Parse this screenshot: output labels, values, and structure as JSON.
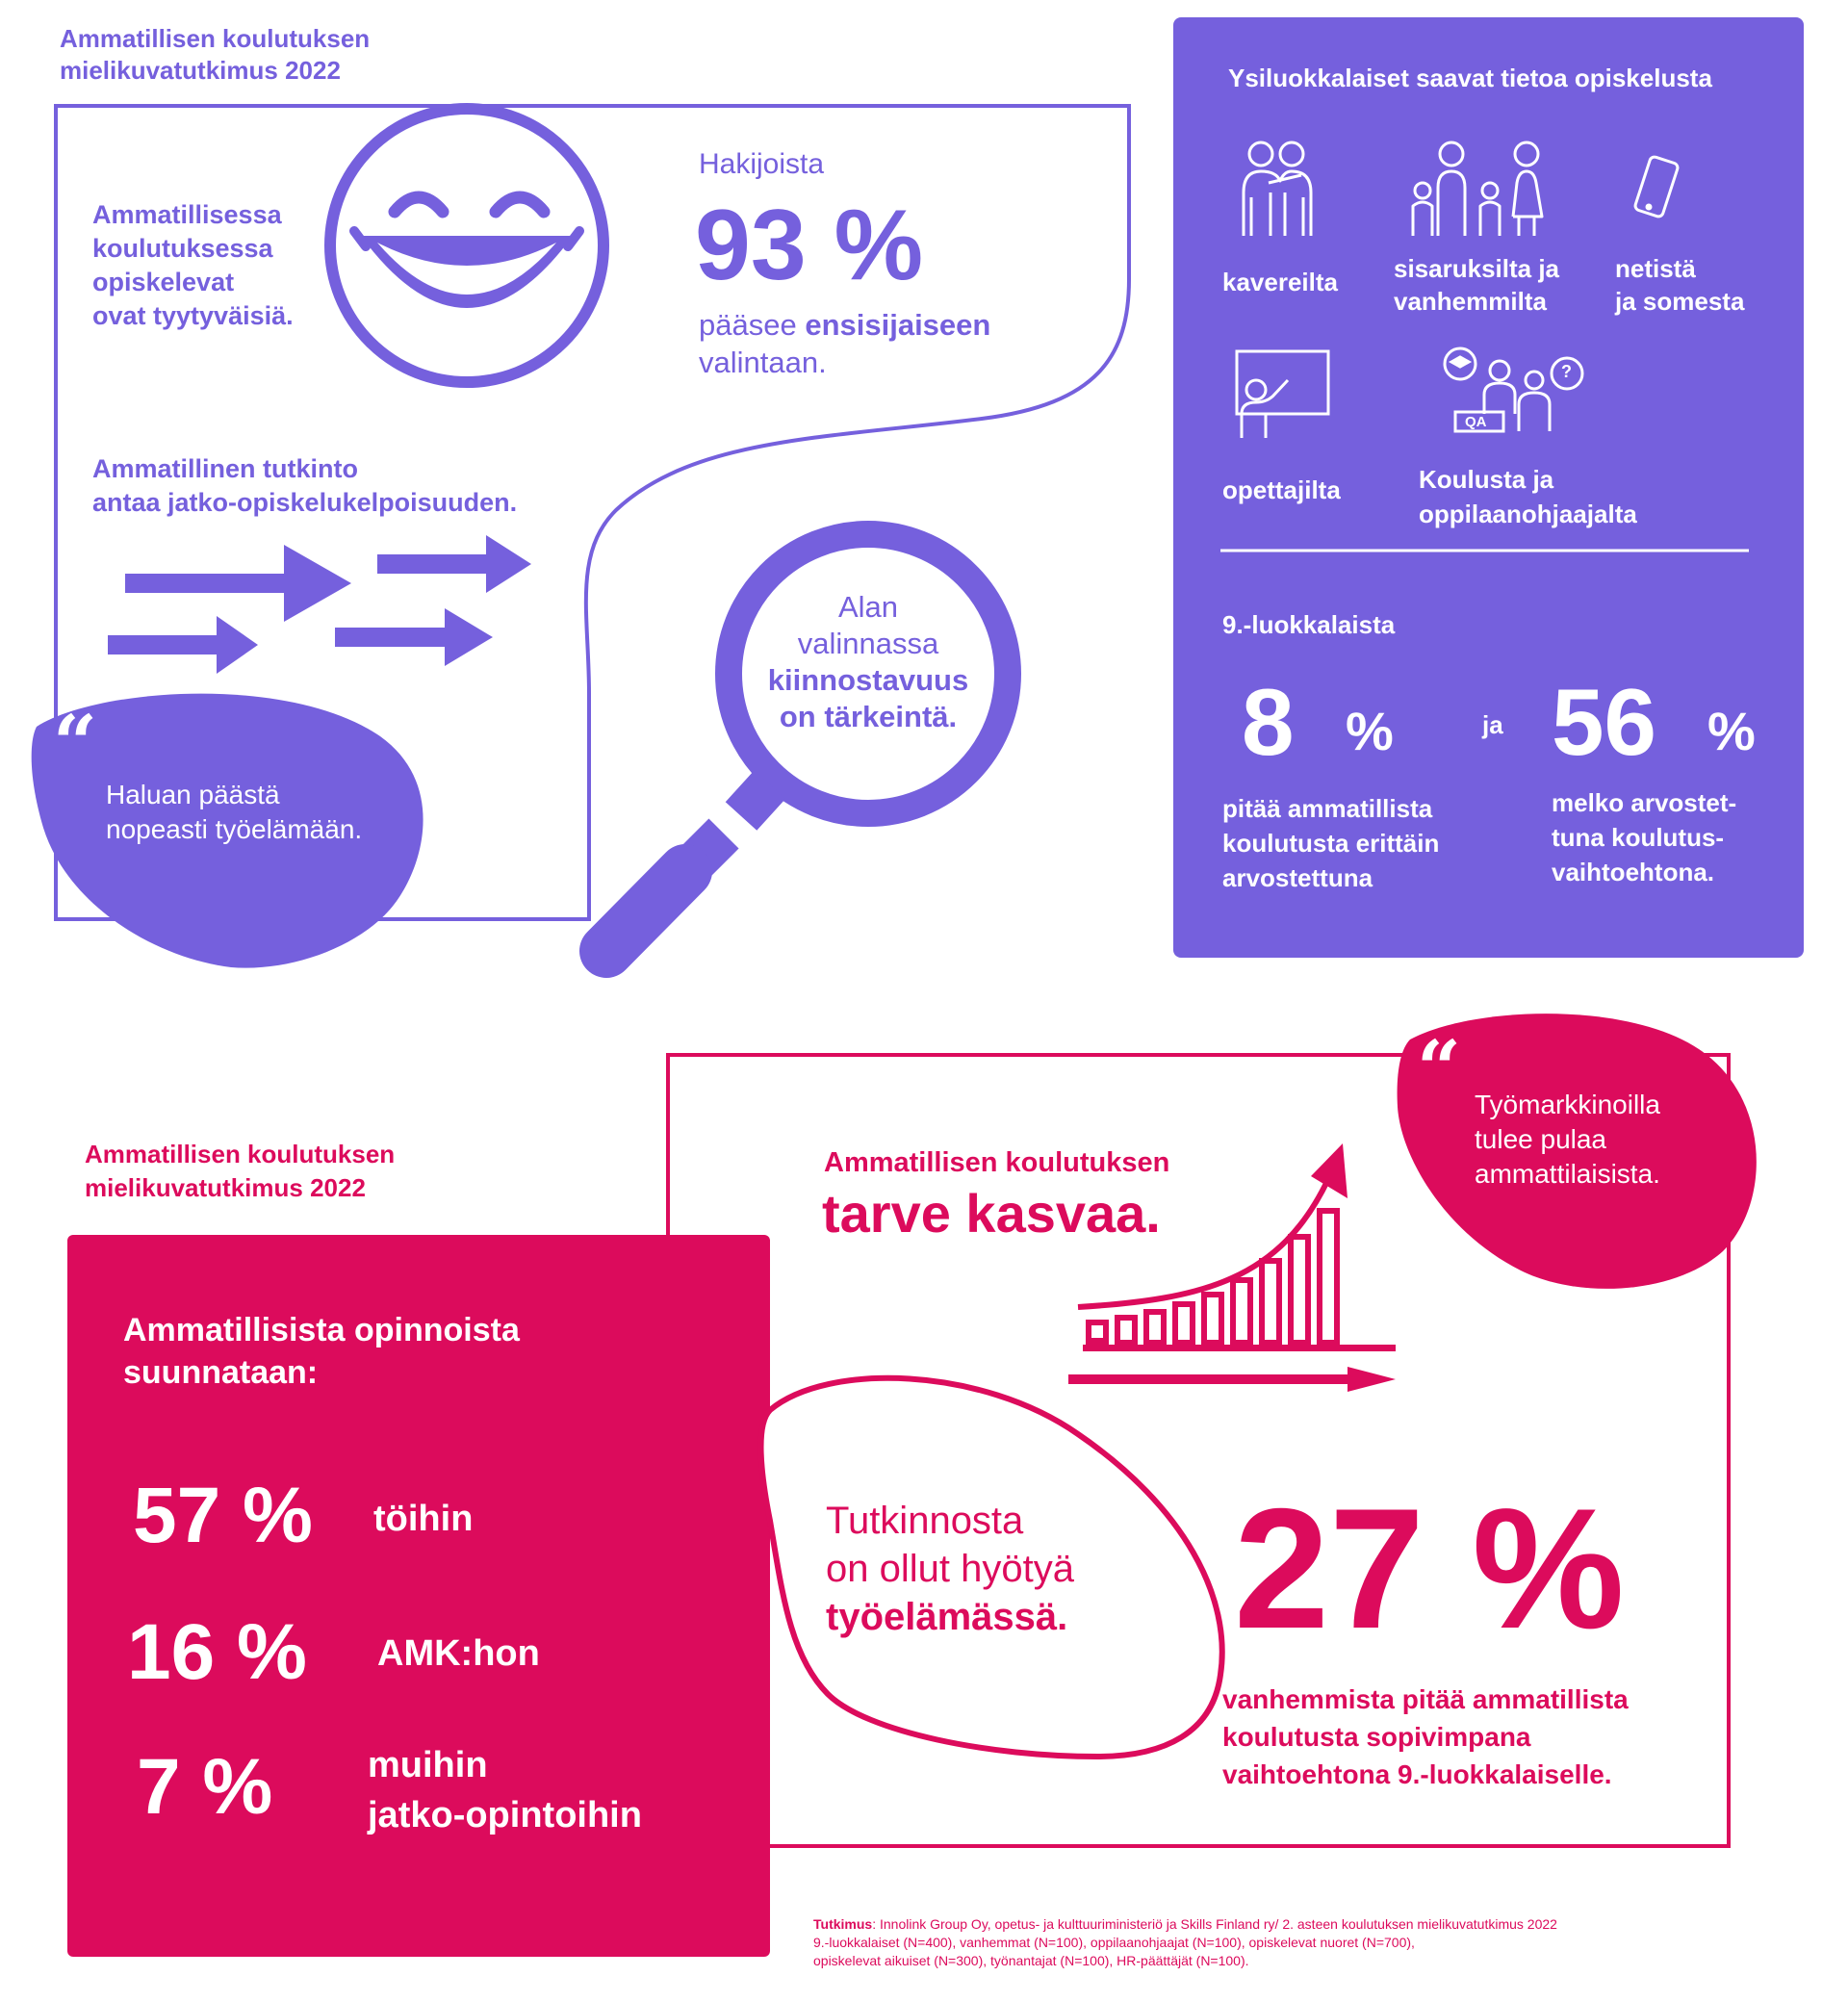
{
  "colors": {
    "purple": "#7560dd",
    "pink": "#dc0b5c",
    "white": "#ffffff"
  },
  "top": {
    "header": "Ammatillisen koulutuksen\nmielikuvatutkimus 2022",
    "satisfied": "Ammatillisessa\nkoulutuksessa\nopiskelevat\novat tyytyväisiä.",
    "applicants": {
      "pre": "Hakijoista",
      "value": "93 %",
      "line_a": "pääsee ",
      "line_a_bold": "ensisijaiseen",
      "line_b": "valintaan."
    },
    "degree": "Ammatillinen tutkinto\nantaa jatko-opiskelukelpoisuuden.",
    "quote_mark": "“",
    "quote": "Haluan päästä\nnopeasti työelämään.",
    "magnifier": {
      "l1": "Alan",
      "l2": "valinnassa",
      "l3": "kiinnostavuus",
      "l4": "on tärkeintä."
    },
    "icons": [
      "smiley-icon",
      "arrows-icon",
      "magnifier-icon"
    ]
  },
  "info_box": {
    "title": "Ysiluokkalaiset saavat tietoa opiskelusta",
    "sources": [
      {
        "label": "kavereilta",
        "icon": "friends-icon"
      },
      {
        "label": "sisaruksilta ja\nvanhemmilta",
        "icon": "family-icon"
      },
      {
        "label": "netistä\nja somesta",
        "icon": "phone-icon"
      },
      {
        "label": "opettajilta",
        "icon": "teacher-icon"
      },
      {
        "label": "Koulusta ja\noppilaanohjaajalta",
        "icon": "counselor-icon"
      }
    ],
    "qa_label": "QA",
    "question_mark": "?",
    "ninth_label": "9.-luokkalaista",
    "stat1": {
      "num": "8",
      "unit": "%",
      "desc": "pitää ammatillista\nkoulutusta erittäin\narvostettuna"
    },
    "connector": "ja",
    "stat2": {
      "num": "56",
      "unit": "%",
      "desc": "melko arvostet-\ntuna koulutus-\nvaihtoehtona."
    }
  },
  "bottom": {
    "header": "Ammatillisen koulutuksen\nmielikuvatutkimus 2022",
    "box_title": "Ammatillisista opinnoista\nsuunnataan:",
    "rows": [
      {
        "value": "57 %",
        "label": "töihin"
      },
      {
        "value": "16 %",
        "label": "AMK:hon"
      },
      {
        "value": "7 %",
        "label": "muihin\njatko-opintoihin"
      }
    ],
    "need_small": "Ammatillisen koulutuksen",
    "need_big": "tarve kasvaa.",
    "quote_mark": "“",
    "quote": "Työmarkkinoilla\ntulee pulaa\nammattilaisista.",
    "benefit": {
      "l1": "Tutkinnosta",
      "l2": "on ollut hyötyä",
      "l3": "työelämässä."
    },
    "parents": {
      "value": "27 %",
      "desc": "vanhemmista pitää ammatillista\nkoulutusta sopivimpana\nvaihtoehtona 9.-luokkalaiselle."
    },
    "icons": [
      "growth-chart-icon"
    ]
  },
  "footer": {
    "label": "Tutkimus",
    "text": ": Innolink Group Oy, opetus- ja kulttuuriministeriö ja Skills Finland ry/ 2. asteen koulutuksen mielikuvatutkimus 2022",
    "line2": "9.-luokkalaiset (N=400), vanhemmat (N=100), oppilaanohjaajat  (N=100), opiskelevat nuoret (N=700),",
    "line3": "opiskelevat aikuiset (N=300), työnantajat (N=100), HR-päättäjät (N=100)."
  }
}
